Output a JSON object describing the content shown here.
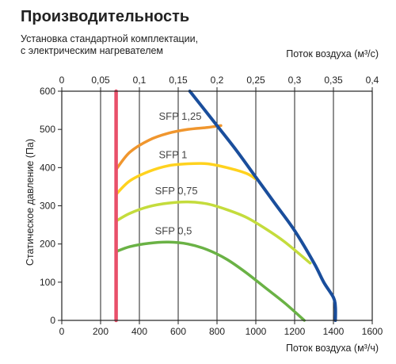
{
  "title": "Производительность",
  "subtitle_line1": "Установка стандартной комплектации,",
  "subtitle_line2": "с электрическим нагревателем",
  "chart_data": {
    "type": "line",
    "xlabel": "Поток воздуха (м³/ч)",
    "xlabel_top": "Поток воздуха (м³/с)",
    "ylabel": "Статическое давление (Па)",
    "xlim": [
      0,
      1600
    ],
    "ylim": [
      0,
      600
    ],
    "x_ticks": [
      "0",
      "200",
      "400",
      "600",
      "800",
      "1000",
      "1200",
      "1400",
      "1600"
    ],
    "x_top_ticks": [
      "0",
      "0,05",
      "0,1",
      "0,15",
      "0,2",
      "0,25",
      "0,3",
      "0,35",
      "0,4"
    ],
    "y_ticks": [
      "0",
      "100",
      "200",
      "300",
      "400",
      "500",
      "600"
    ],
    "grid": true,
    "series": [
      {
        "name": "SFP 1,25",
        "color": "#f0962e",
        "x": [
          280,
          350,
          450,
          550,
          650,
          750,
          820
        ],
        "y": [
          395,
          440,
          472,
          490,
          500,
          505,
          510
        ]
      },
      {
        "name": "SFP 1",
        "color": "#ffd21e",
        "x": [
          280,
          350,
          450,
          550,
          650,
          750,
          850,
          950,
          1000
        ],
        "y": [
          330,
          365,
          390,
          405,
          410,
          410,
          400,
          385,
          370
        ]
      },
      {
        "name": "SFP 0,75",
        "color": "#c4dc3c",
        "x": [
          280,
          350,
          450,
          550,
          650,
          750,
          850,
          950,
          1050,
          1150,
          1280
        ],
        "y": [
          260,
          280,
          298,
          307,
          310,
          305,
          290,
          270,
          240,
          205,
          150
        ]
      },
      {
        "name": "SFP 0,5",
        "color": "#6ab245",
        "x": [
          280,
          350,
          450,
          550,
          650,
          750,
          850,
          950,
          1050,
          1150,
          1250
        ],
        "y": [
          180,
          193,
          202,
          205,
          200,
          185,
          160,
          125,
          85,
          45,
          0
        ]
      },
      {
        "name": "",
        "color": "#1a4e9c",
        "x": [
          660,
          800,
          900,
          1000,
          1100,
          1200,
          1300,
          1350,
          1400,
          1410,
          1410
        ],
        "y": [
          600,
          510,
          445,
          375,
          305,
          235,
          150,
          100,
          60,
          35,
          0
        ]
      },
      {
        "name": "",
        "color": "#e8506a",
        "x": [
          280,
          280
        ],
        "y": [
          0,
          600
        ]
      }
    ]
  }
}
